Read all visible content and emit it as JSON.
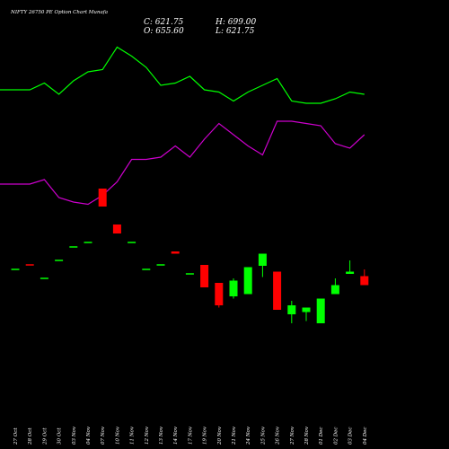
{
  "header": {
    "title": "NIFTY 26750  PE Option  Chart Munafa",
    "close": "C: 621.75",
    "open": "O: 655.60",
    "high": "H: 699.00",
    "low": "L: 621.75"
  },
  "chart_data": {
    "type": "candlestick",
    "title": "NIFTY 26750  PE Option  Chart Munafa",
    "categories": [
      "27 Oct",
      "28 Oct",
      "29 Oct",
      "30 Oct",
      "03 Nov",
      "04 Nov",
      "07 Nov",
      "10 Nov",
      "11 Nov",
      "12 Nov",
      "13 Nov",
      "14 Nov",
      "17 Nov",
      "19 Nov",
      "20 Nov",
      "21 Nov",
      "24 Nov",
      "25 Nov",
      "26 Nov",
      "27 Nov",
      "28 Nov",
      "01 Dec",
      "02 Dec",
      "03 Dec",
      "04 Dec"
    ],
    "colors": {
      "up": "#00ff00",
      "down": "#ff0000",
      "flat_up": "#00ff00",
      "upper_line": "#00ff00",
      "lower_line": "#cc00cc",
      "background": "#000000"
    },
    "candles": [
      {
        "open": 40,
        "close": 40,
        "high": 40,
        "low": 40,
        "color": "up"
      },
      {
        "open": 41,
        "close": 41,
        "high": 41,
        "low": 41,
        "color": "down"
      },
      {
        "open": 38,
        "close": 38,
        "high": 38,
        "low": 38,
        "color": "up"
      },
      {
        "open": 42,
        "close": 42,
        "high": 42,
        "low": 42,
        "color": "up"
      },
      {
        "open": 45,
        "close": 45,
        "high": 45,
        "low": 45,
        "color": "up"
      },
      {
        "open": 46,
        "close": 46,
        "high": 46,
        "low": 46,
        "color": "up"
      },
      {
        "open": 58,
        "close": 54,
        "high": 58,
        "low": 54,
        "color": "down"
      },
      {
        "open": 50,
        "close": 48,
        "high": 50,
        "low": 48,
        "color": "down"
      },
      {
        "open": 46,
        "close": 46,
        "high": 46,
        "low": 46,
        "color": "up"
      },
      {
        "open": 40,
        "close": 40,
        "high": 40,
        "low": 40,
        "color": "up"
      },
      {
        "open": 41,
        "close": 41,
        "high": 41,
        "low": 41,
        "color": "up"
      },
      {
        "open": 44,
        "close": 43.5,
        "high": 44,
        "low": 43.5,
        "color": "down"
      },
      {
        "open": 39,
        "close": 39,
        "high": 39,
        "low": 39,
        "color": "up"
      },
      {
        "open": 41,
        "close": 36,
        "high": 41,
        "low": 36,
        "color": "down"
      },
      {
        "open": 37,
        "close": 32,
        "high": 37,
        "low": 31.5,
        "color": "down"
      },
      {
        "open": 34,
        "close": 37.5,
        "high": 38,
        "low": 33.5,
        "color": "up"
      },
      {
        "open": 34.5,
        "close": 40.5,
        "high": 40.5,
        "low": 34.5,
        "color": "up"
      },
      {
        "open": 40.8,
        "close": 43.5,
        "high": 43.5,
        "low": 38.3,
        "color": "up"
      },
      {
        "open": 39.5,
        "close": 31,
        "high": 39.5,
        "low": 31,
        "color": "down"
      },
      {
        "open": 30,
        "close": 32,
        "high": 33,
        "low": 28,
        "color": "up"
      },
      {
        "open": 30.5,
        "close": 31.5,
        "high": 31.5,
        "low": 28.5,
        "color": "up"
      },
      {
        "open": 28,
        "close": 33.5,
        "high": 33.5,
        "low": 28,
        "color": "up"
      },
      {
        "open": 34.5,
        "close": 36.5,
        "high": 38,
        "low": 34.5,
        "color": "up"
      },
      {
        "open": 39,
        "close": 39.5,
        "high": 42,
        "low": 39,
        "color": "up"
      },
      {
        "open": 38.5,
        "close": 36.5,
        "high": 40,
        "low": 36.5,
        "color": "down"
      }
    ],
    "upper_band": [
      80,
      80,
      81.5,
      79,
      82,
      84,
      84.5,
      89.5,
      87.5,
      85,
      81,
      81.5,
      83,
      80,
      79.5,
      77.5,
      79.5,
      81,
      82.5,
      77.5,
      77,
      77,
      78,
      79.5,
      79
    ],
    "lower_band": [
      59,
      59,
      60,
      56,
      55,
      54.5,
      56.5,
      59.5,
      64.5,
      64.5,
      65,
      67.5,
      65,
      69,
      72.5,
      70,
      67.5,
      65.5,
      73,
      73,
      72.5,
      72,
      68,
      67,
      70
    ]
  }
}
